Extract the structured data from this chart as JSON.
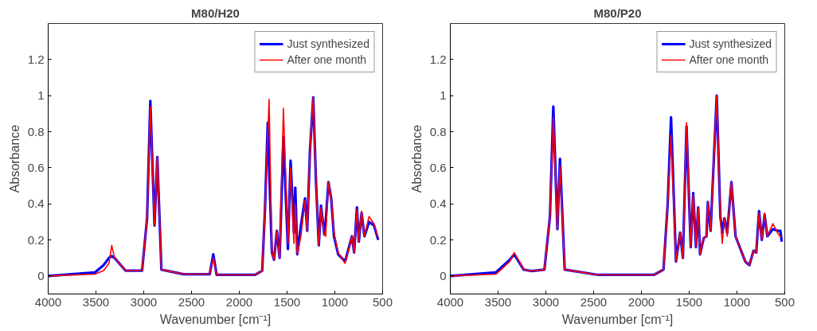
{
  "chart_data": [
    {
      "type": "line",
      "title": "M80/H20",
      "xlabel": "Wavenumber [cm⁻¹]",
      "ylabel": "Absorbance",
      "xlim": [
        4000,
        500
      ],
      "ylim": [
        -0.1,
        1.4
      ],
      "xticks": [
        4000,
        3500,
        3000,
        2500,
        2000,
        1500,
        1000,
        500
      ],
      "yticks": [
        0,
        0.2,
        0.4,
        0.6,
        0.8,
        1,
        1.2
      ],
      "grid": false,
      "legend": "top right",
      "series": [
        {
          "name": "Just synthesized",
          "color": "#0000ff",
          "x": [
            4000,
            3509,
            3420,
            3364,
            3335,
            3306,
            3191,
            3017,
            2965,
            2931,
            2887,
            2858,
            2815,
            2584,
            2309,
            2272,
            2237,
            1833,
            1760,
            1731,
            1702,
            1659,
            1636,
            1607,
            1578,
            1538,
            1491,
            1463,
            1428,
            1414,
            1393,
            1355,
            1312,
            1289,
            1260,
            1226,
            1197,
            1168,
            1145,
            1110,
            1096,
            1067,
            1038,
            1009,
            965,
            893,
            821,
            798,
            769,
            749,
            720,
            690,
            642,
            590,
            546
          ],
          "values": [
            0,
            0.02,
            0.06,
            0.1,
            0.11,
            0.1,
            0.03,
            0.03,
            0.32,
            0.97,
            0.28,
            0.66,
            0.035,
            0.01,
            0.01,
            0.12,
            0.006,
            0.006,
            0.03,
            0.37,
            0.85,
            0.13,
            0.09,
            0.25,
            0.1,
            0.77,
            0.15,
            0.64,
            0.24,
            0.49,
            0.12,
            0.28,
            0.43,
            0.25,
            0.7,
            0.99,
            0.52,
            0.17,
            0.39,
            0.23,
            0.3,
            0.52,
            0.43,
            0.22,
            0.12,
            0.08,
            0.22,
            0.13,
            0.38,
            0.19,
            0.35,
            0.22,
            0.3,
            0.28,
            0.2
          ]
        },
        {
          "name": "After one month",
          "color": "#ff0000",
          "x": [
            4000,
            3509,
            3420,
            3364,
            3335,
            3306,
            3191,
            3017,
            2965,
            2931,
            2887,
            2858,
            2815,
            2584,
            2309,
            2272,
            2237,
            1833,
            1760,
            1731,
            1688,
            1659,
            1636,
            1607,
            1578,
            1538,
            1491,
            1463,
            1428,
            1414,
            1393,
            1355,
            1312,
            1289,
            1260,
            1226,
            1197,
            1168,
            1145,
            1110,
            1096,
            1067,
            1038,
            1009,
            965,
            893,
            821,
            798,
            769,
            749,
            720,
            690,
            642,
            590,
            546
          ],
          "values": [
            0,
            0.01,
            0.03,
            0.07,
            0.17,
            0.1,
            0.03,
            0.03,
            0.32,
            0.94,
            0.28,
            0.66,
            0.035,
            0.01,
            0.01,
            0.1,
            0.006,
            0.006,
            0.03,
            0.37,
            0.98,
            0.13,
            0.09,
            0.25,
            0.1,
            0.93,
            0.18,
            0.6,
            0.18,
            0.4,
            0.12,
            0.22,
            0.42,
            0.25,
            0.7,
            0.99,
            0.52,
            0.17,
            0.38,
            0.23,
            0.22,
            0.52,
            0.43,
            0.24,
            0.13,
            0.07,
            0.22,
            0.13,
            0.37,
            0.19,
            0.36,
            0.22,
            0.33,
            0.29,
            0.21
          ]
        }
      ]
    },
    {
      "type": "line",
      "title": "M80/P20",
      "xlabel": "Wavenumber [cm⁻¹]",
      "ylabel": "Absorbance",
      "xlim": [
        4000,
        500
      ],
      "ylim": [
        -0.1,
        1.4
      ],
      "xticks": [
        4000,
        3500,
        3000,
        2500,
        2000,
        1500,
        1000,
        500
      ],
      "yticks": [
        0,
        0.2,
        0.4,
        0.6,
        0.8,
        1,
        1.2
      ],
      "grid": false,
      "legend": "top right",
      "series": [
        {
          "name": "Just synthesized",
          "color": "#0000ff",
          "x": [
            4000,
            3522,
            3377,
            3331,
            3232,
            3145,
            3015,
            2957,
            2922,
            2879,
            2852,
            2803,
            2450,
            1870,
            1769,
            1725,
            1690,
            1638,
            1595,
            1566,
            1528,
            1484,
            1458,
            1429,
            1406,
            1386,
            1348,
            1319,
            1305,
            1276,
            1247,
            1212,
            1174,
            1154,
            1131,
            1102,
            1058,
            1015,
            913,
            870,
            827,
            798,
            769,
            740,
            711,
            682,
            624,
            566,
            546,
            531
          ],
          "values": [
            0,
            0.02,
            0.09,
            0.12,
            0.035,
            0.027,
            0.035,
            0.33,
            0.94,
            0.26,
            0.65,
            0.035,
            0.006,
            0.006,
            0.035,
            0.4,
            0.88,
            0.08,
            0.24,
            0.1,
            0.83,
            0.16,
            0.46,
            0.16,
            0.38,
            0.12,
            0.21,
            0.22,
            0.41,
            0.25,
            0.59,
            1,
            0.33,
            0.24,
            0.32,
            0.24,
            0.52,
            0.22,
            0.08,
            0.06,
            0.14,
            0.13,
            0.36,
            0.2,
            0.34,
            0.22,
            0.26,
            0.25,
            0.25,
            0.19
          ]
        },
        {
          "name": "After one month",
          "color": "#ff0000",
          "x": [
            4000,
            3522,
            3377,
            3331,
            3232,
            3145,
            3015,
            2957,
            2922,
            2879,
            2852,
            2803,
            2450,
            1870,
            1769,
            1725,
            1690,
            1638,
            1595,
            1566,
            1528,
            1484,
            1458,
            1429,
            1406,
            1386,
            1348,
            1319,
            1305,
            1276,
            1247,
            1212,
            1174,
            1154,
            1131,
            1102,
            1058,
            1015,
            913,
            870,
            827,
            798,
            769,
            740,
            711,
            682,
            624,
            566,
            546,
            531
          ],
          "values": [
            0,
            0.01,
            0.08,
            0.13,
            0.035,
            0.027,
            0.035,
            0.33,
            0.88,
            0.26,
            0.61,
            0.035,
            0.006,
            0.006,
            0.035,
            0.4,
            0.78,
            0.08,
            0.24,
            0.1,
            0.85,
            0.16,
            0.45,
            0.16,
            0.38,
            0.12,
            0.21,
            0.22,
            0.41,
            0.25,
            0.59,
            1,
            0.33,
            0.18,
            0.32,
            0.22,
            0.52,
            0.22,
            0.08,
            0.06,
            0.14,
            0.13,
            0.35,
            0.2,
            0.35,
            0.22,
            0.29,
            0.23,
            0.22,
            0.22
          ]
        }
      ]
    }
  ]
}
